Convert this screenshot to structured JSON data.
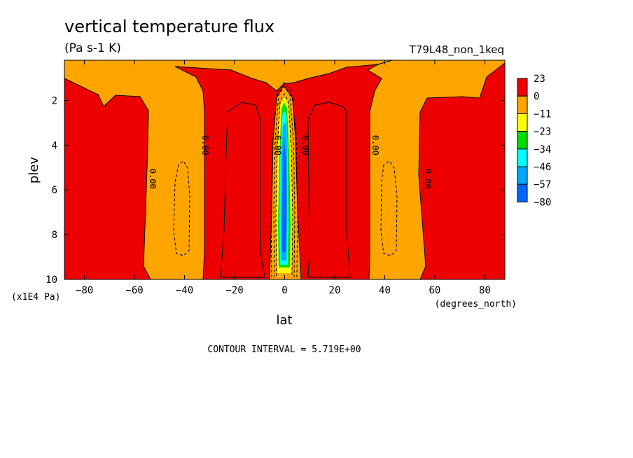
{
  "title": "vertical temperature flux",
  "units": "(Pa s-1 K)",
  "run_label": "T79L48_non_1keq",
  "footer": "CONTOUR INTERVAL = 5.719E+00",
  "chart_data": {
    "type": "heatmap",
    "xlabel": "lat",
    "x_units": "(degrees_north)",
    "ylabel": "plev",
    "y_units": "(x1E4 Pa)",
    "xlim": [
      -88,
      88
    ],
    "ylim": [
      10,
      0.2
    ],
    "x_ticks": [
      -80,
      -60,
      -40,
      -20,
      0,
      20,
      40,
      60,
      80
    ],
    "y_ticks": [
      2,
      4,
      6,
      8,
      10
    ],
    "contour_interval": 5.719,
    "colorbar": {
      "levels": [
        "23",
        "0",
        "-11",
        "-23",
        "-34",
        "-46",
        "-57",
        "-80"
      ],
      "colors": [
        "#ee0000",
        "#ffa500",
        "#ffff00",
        "#00dd00",
        "#00ffff",
        "#00aaff",
        "#0066ff"
      ]
    },
    "contour_labels": [
      {
        "text": "0.00",
        "lat": -55,
        "plev": 5.5
      },
      {
        "text": "0.00",
        "lat": -34,
        "plev": 4.0
      },
      {
        "text": "0.00",
        "lat": -5,
        "plev": 4.0
      },
      {
        "text": "0.00",
        "lat": 6,
        "plev": 4.0
      },
      {
        "text": "0.00",
        "lat": 34,
        "plev": 4.0
      },
      {
        "text": "0.00",
        "lat": 55,
        "plev": 5.5
      }
    ],
    "regions": [
      {
        "name": "positive-flux-west",
        "bin": "0 to 23"
      },
      {
        "name": "weak-negative-bands",
        "bin": "-11 to 0"
      },
      {
        "name": "equatorial-downdraft-core",
        "bin": "-80 to -57"
      }
    ]
  }
}
